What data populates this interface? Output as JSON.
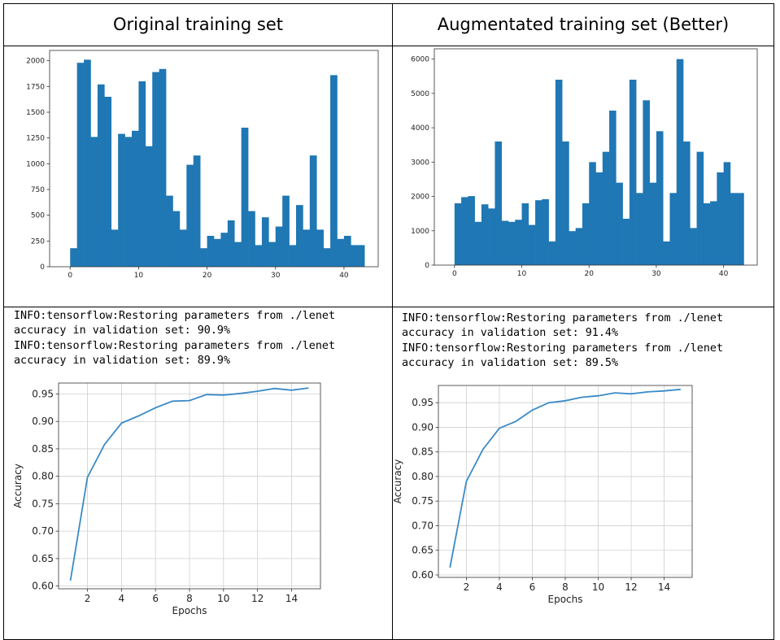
{
  "headers": {
    "left": "Original training set",
    "right": "Augmentated training set (Better)"
  },
  "logs": {
    "left": [
      "INFO:tensorflow:Restoring parameters from ./lenet",
      "accuracy in validation set: 90.9%",
      "INFO:tensorflow:Restoring parameters from ./lenet",
      "accuracy in validation set: 89.9%"
    ],
    "right": [
      "INFO:tensorflow:Restoring parameters from ./lenet",
      "accuracy in validation set: 91.4%",
      "INFO:tensorflow:Restoring parameters from ./lenet",
      "accuracy in validation set: 89.5%"
    ]
  },
  "colors": {
    "bar": "#1f77b4",
    "line": "#3a8ac6",
    "grid": "#cfcfcf"
  },
  "chart_data": [
    {
      "id": "hist_original",
      "type": "bar",
      "title": "",
      "xlabel": "",
      "ylabel": "",
      "grid": false,
      "bin_width": 1,
      "bins_start": 0,
      "values": [
        180,
        1980,
        2010,
        1260,
        1770,
        1650,
        360,
        1290,
        1260,
        1320,
        1800,
        1170,
        1890,
        1920,
        690,
        540,
        360,
        990,
        1080,
        180,
        300,
        270,
        330,
        450,
        240,
        1350,
        540,
        210,
        480,
        240,
        390,
        690,
        210,
        599,
        360,
        1080,
        360,
        180,
        1860,
        270,
        300,
        210,
        210
      ],
      "xlim": [
        -3,
        45
      ],
      "ylim": [
        0,
        2100
      ],
      "xticks": [
        0,
        10,
        20,
        30,
        40
      ],
      "yticks": [
        0,
        250,
        500,
        750,
        1000,
        1250,
        1500,
        1750,
        2000
      ]
    },
    {
      "id": "hist_augmented",
      "type": "bar",
      "title": "",
      "xlabel": "",
      "ylabel": "",
      "grid": false,
      "bin_width": 1,
      "bins_start": 0,
      "values": [
        1800,
        1980,
        2010,
        1260,
        1770,
        1650,
        3600,
        1290,
        1260,
        1320,
        1800,
        1170,
        1890,
        1920,
        690,
        5400,
        3600,
        990,
        1080,
        1800,
        3000,
        2700,
        3300,
        4500,
        2400,
        1350,
        5400,
        2100,
        4800,
        2400,
        3900,
        690,
        2100,
        6000,
        3600,
        1080,
        3300,
        1800,
        1860,
        2700,
        3000,
        2100,
        2100
      ],
      "xlim": [
        -3,
        45
      ],
      "ylim": [
        0,
        6300
      ],
      "xticks": [
        0,
        10,
        20,
        30,
        40
      ],
      "yticks": [
        0,
        1000,
        2000,
        3000,
        4000,
        5000,
        6000
      ]
    },
    {
      "id": "acc_original",
      "type": "line",
      "title": "",
      "xlabel": "Epochs",
      "ylabel": "Accuracy",
      "grid": true,
      "x": [
        1,
        2,
        3,
        4,
        5,
        6,
        7,
        8,
        9,
        10,
        11,
        12,
        13,
        14,
        15
      ],
      "series": [
        {
          "values": [
            0.61,
            0.798,
            0.858,
            0.897,
            0.91,
            0.925,
            0.937,
            0.938,
            0.949,
            0.948,
            0.951,
            0.955,
            0.96,
            0.957,
            0.961
          ]
        }
      ],
      "xlim": [
        0.3,
        15.7
      ],
      "ylim": [
        0.595,
        0.97
      ],
      "xticks": [
        2,
        4,
        6,
        8,
        10,
        12,
        14
      ],
      "yticks": [
        0.6,
        0.65,
        0.7,
        0.75,
        0.8,
        0.85,
        0.9,
        0.95
      ]
    },
    {
      "id": "acc_augmented",
      "type": "line",
      "title": "",
      "xlabel": "Epochs",
      "ylabel": "Accuracy",
      "grid": true,
      "x": [
        1,
        2,
        3,
        4,
        5,
        6,
        7,
        8,
        9,
        10,
        11,
        12,
        13,
        14,
        15
      ],
      "series": [
        {
          "values": [
            0.615,
            0.79,
            0.855,
            0.898,
            0.912,
            0.935,
            0.95,
            0.954,
            0.961,
            0.964,
            0.97,
            0.968,
            0.972,
            0.974,
            0.977
          ]
        }
      ],
      "xlim": [
        0.3,
        15.7
      ],
      "ylim": [
        0.595,
        0.985
      ],
      "xticks": [
        2,
        4,
        6,
        8,
        10,
        12,
        14
      ],
      "yticks": [
        0.6,
        0.65,
        0.7,
        0.75,
        0.8,
        0.85,
        0.9,
        0.95
      ]
    }
  ]
}
